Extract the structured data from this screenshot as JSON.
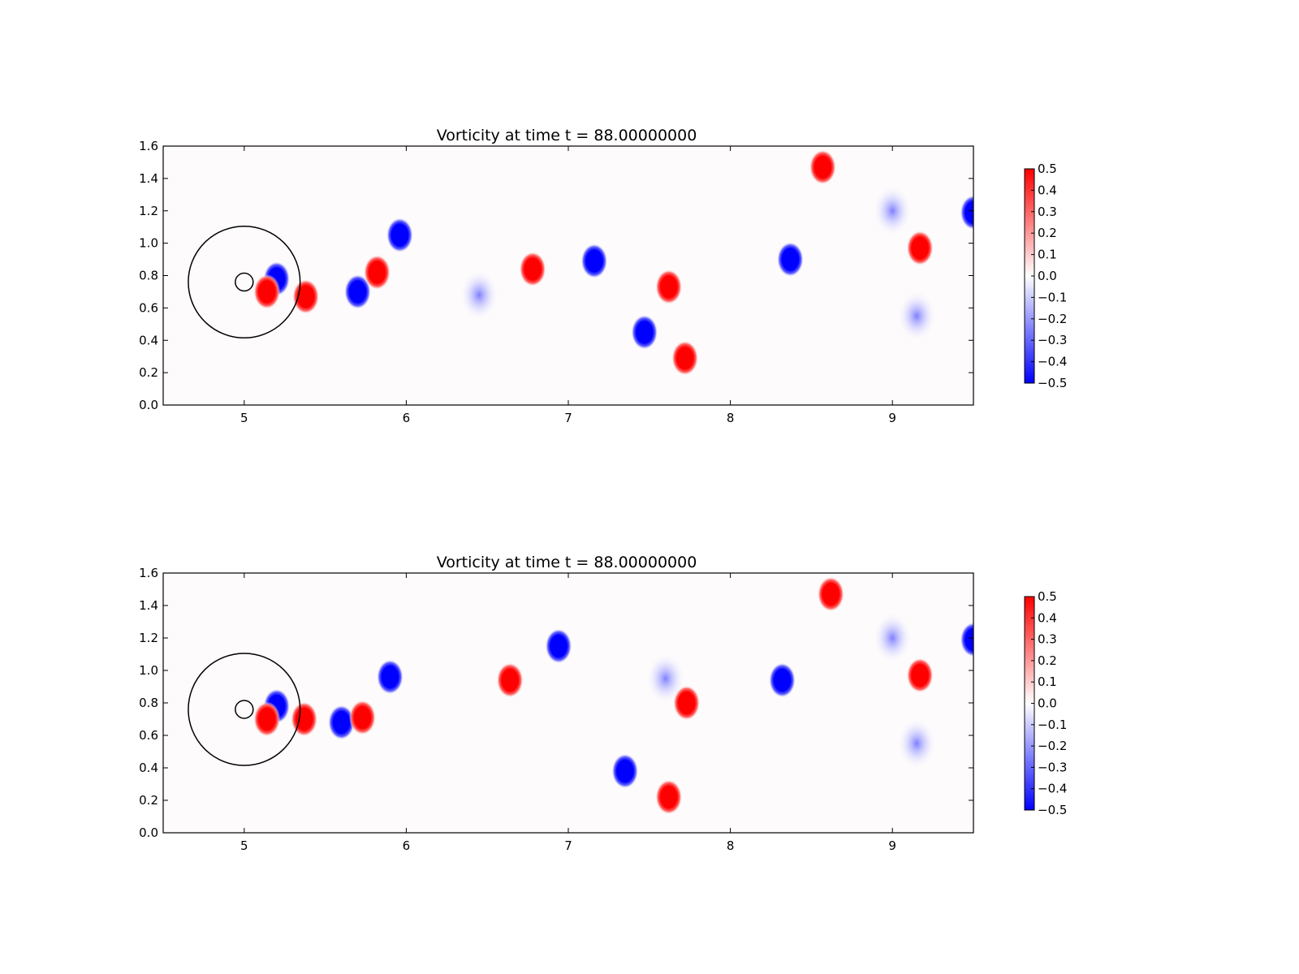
{
  "figure": {
    "background": "#ffffff",
    "colormap": {
      "name": "bwr",
      "low": "#0000ff",
      "mid": "#ffffff",
      "high": "#ff0000"
    }
  },
  "chart_data": [
    {
      "type": "heatmap",
      "title": "Vorticity at time t =    88.00000000",
      "xlabel": "",
      "ylabel": "",
      "xlim": [
        4.5,
        9.5
      ],
      "ylim": [
        0.0,
        1.6
      ],
      "x_ticks": [
        "5",
        "6",
        "7",
        "8",
        "9"
      ],
      "y_ticks": [
        "0.0",
        "0.2",
        "0.4",
        "0.6",
        "0.8",
        "1.0",
        "1.2",
        "1.4",
        "1.6"
      ],
      "colorbar": {
        "range": [
          -0.5,
          0.5
        ],
        "ticks": [
          "0.5",
          "0.4",
          "0.3",
          "0.2",
          "0.1",
          "0.0",
          "−0.1",
          "−0.2",
          "−0.3",
          "−0.4",
          "−0.5"
        ]
      },
      "overlays": {
        "large_circle": {
          "cx": 5.0,
          "cy": 0.76,
          "r": 0.345
        },
        "small_circle": {
          "cx": 5.0,
          "cy": 0.76,
          "r": 0.055
        }
      },
      "vortices": [
        {
          "x": 5.2,
          "y": 0.78,
          "value": -0.5
        },
        {
          "x": 5.14,
          "y": 0.7,
          "value": 0.5
        },
        {
          "x": 5.38,
          "y": 0.67,
          "value": 0.5
        },
        {
          "x": 5.7,
          "y": 0.7,
          "value": -0.5
        },
        {
          "x": 5.82,
          "y": 0.82,
          "value": 0.5
        },
        {
          "x": 5.96,
          "y": 1.05,
          "value": -0.5
        },
        {
          "x": 6.45,
          "y": 0.68,
          "value": -0.1
        },
        {
          "x": 6.78,
          "y": 0.84,
          "value": 0.5
        },
        {
          "x": 7.16,
          "y": 0.89,
          "value": -0.5
        },
        {
          "x": 7.47,
          "y": 0.45,
          "value": -0.5
        },
        {
          "x": 7.62,
          "y": 0.73,
          "value": 0.5
        },
        {
          "x": 7.72,
          "y": 0.29,
          "value": 0.5
        },
        {
          "x": 8.37,
          "y": 0.9,
          "value": -0.5
        },
        {
          "x": 8.57,
          "y": 1.47,
          "value": 0.5
        },
        {
          "x": 9.17,
          "y": 0.97,
          "value": 0.5
        },
        {
          "x": 9.15,
          "y": 0.55,
          "value": -0.2
        },
        {
          "x": 9.5,
          "y": 1.19,
          "value": -0.5
        },
        {
          "x": 9.0,
          "y": 1.2,
          "value": -0.08
        }
      ]
    },
    {
      "type": "heatmap",
      "title": "Vorticity at time t =    88.00000000",
      "xlabel": "",
      "ylabel": "",
      "xlim": [
        4.5,
        9.5
      ],
      "ylim": [
        0.0,
        1.6
      ],
      "x_ticks": [
        "5",
        "6",
        "7",
        "8",
        "9"
      ],
      "y_ticks": [
        "0.0",
        "0.2",
        "0.4",
        "0.6",
        "0.8",
        "1.0",
        "1.2",
        "1.4",
        "1.6"
      ],
      "colorbar": {
        "range": [
          -0.5,
          0.5
        ],
        "ticks": [
          "0.5",
          "0.4",
          "0.3",
          "0.2",
          "0.1",
          "0.0",
          "−0.1",
          "−0.2",
          "−0.3",
          "−0.4",
          "−0.5"
        ]
      },
      "overlays": {
        "large_circle": {
          "cx": 5.0,
          "cy": 0.76,
          "r": 0.345
        },
        "small_circle": {
          "cx": 5.0,
          "cy": 0.76,
          "r": 0.055
        }
      },
      "vortices": [
        {
          "x": 5.2,
          "y": 0.78,
          "value": -0.5
        },
        {
          "x": 5.14,
          "y": 0.7,
          "value": 0.5
        },
        {
          "x": 5.37,
          "y": 0.7,
          "value": 0.5
        },
        {
          "x": 5.6,
          "y": 0.68,
          "value": -0.5
        },
        {
          "x": 5.73,
          "y": 0.71,
          "value": 0.5
        },
        {
          "x": 5.9,
          "y": 0.96,
          "value": -0.5
        },
        {
          "x": 6.64,
          "y": 0.94,
          "value": 0.5
        },
        {
          "x": 6.94,
          "y": 1.15,
          "value": -0.5
        },
        {
          "x": 7.35,
          "y": 0.38,
          "value": -0.5
        },
        {
          "x": 7.62,
          "y": 0.22,
          "value": 0.5
        },
        {
          "x": 7.73,
          "y": 0.8,
          "value": 0.5
        },
        {
          "x": 7.6,
          "y": 0.95,
          "value": -0.15
        },
        {
          "x": 8.32,
          "y": 0.94,
          "value": -0.5
        },
        {
          "x": 8.62,
          "y": 1.47,
          "value": 0.5
        },
        {
          "x": 9.17,
          "y": 0.97,
          "value": 0.5
        },
        {
          "x": 9.15,
          "y": 0.55,
          "value": -0.2
        },
        {
          "x": 9.5,
          "y": 1.19,
          "value": -0.5
        },
        {
          "x": 9.0,
          "y": 1.2,
          "value": -0.08
        }
      ]
    }
  ]
}
